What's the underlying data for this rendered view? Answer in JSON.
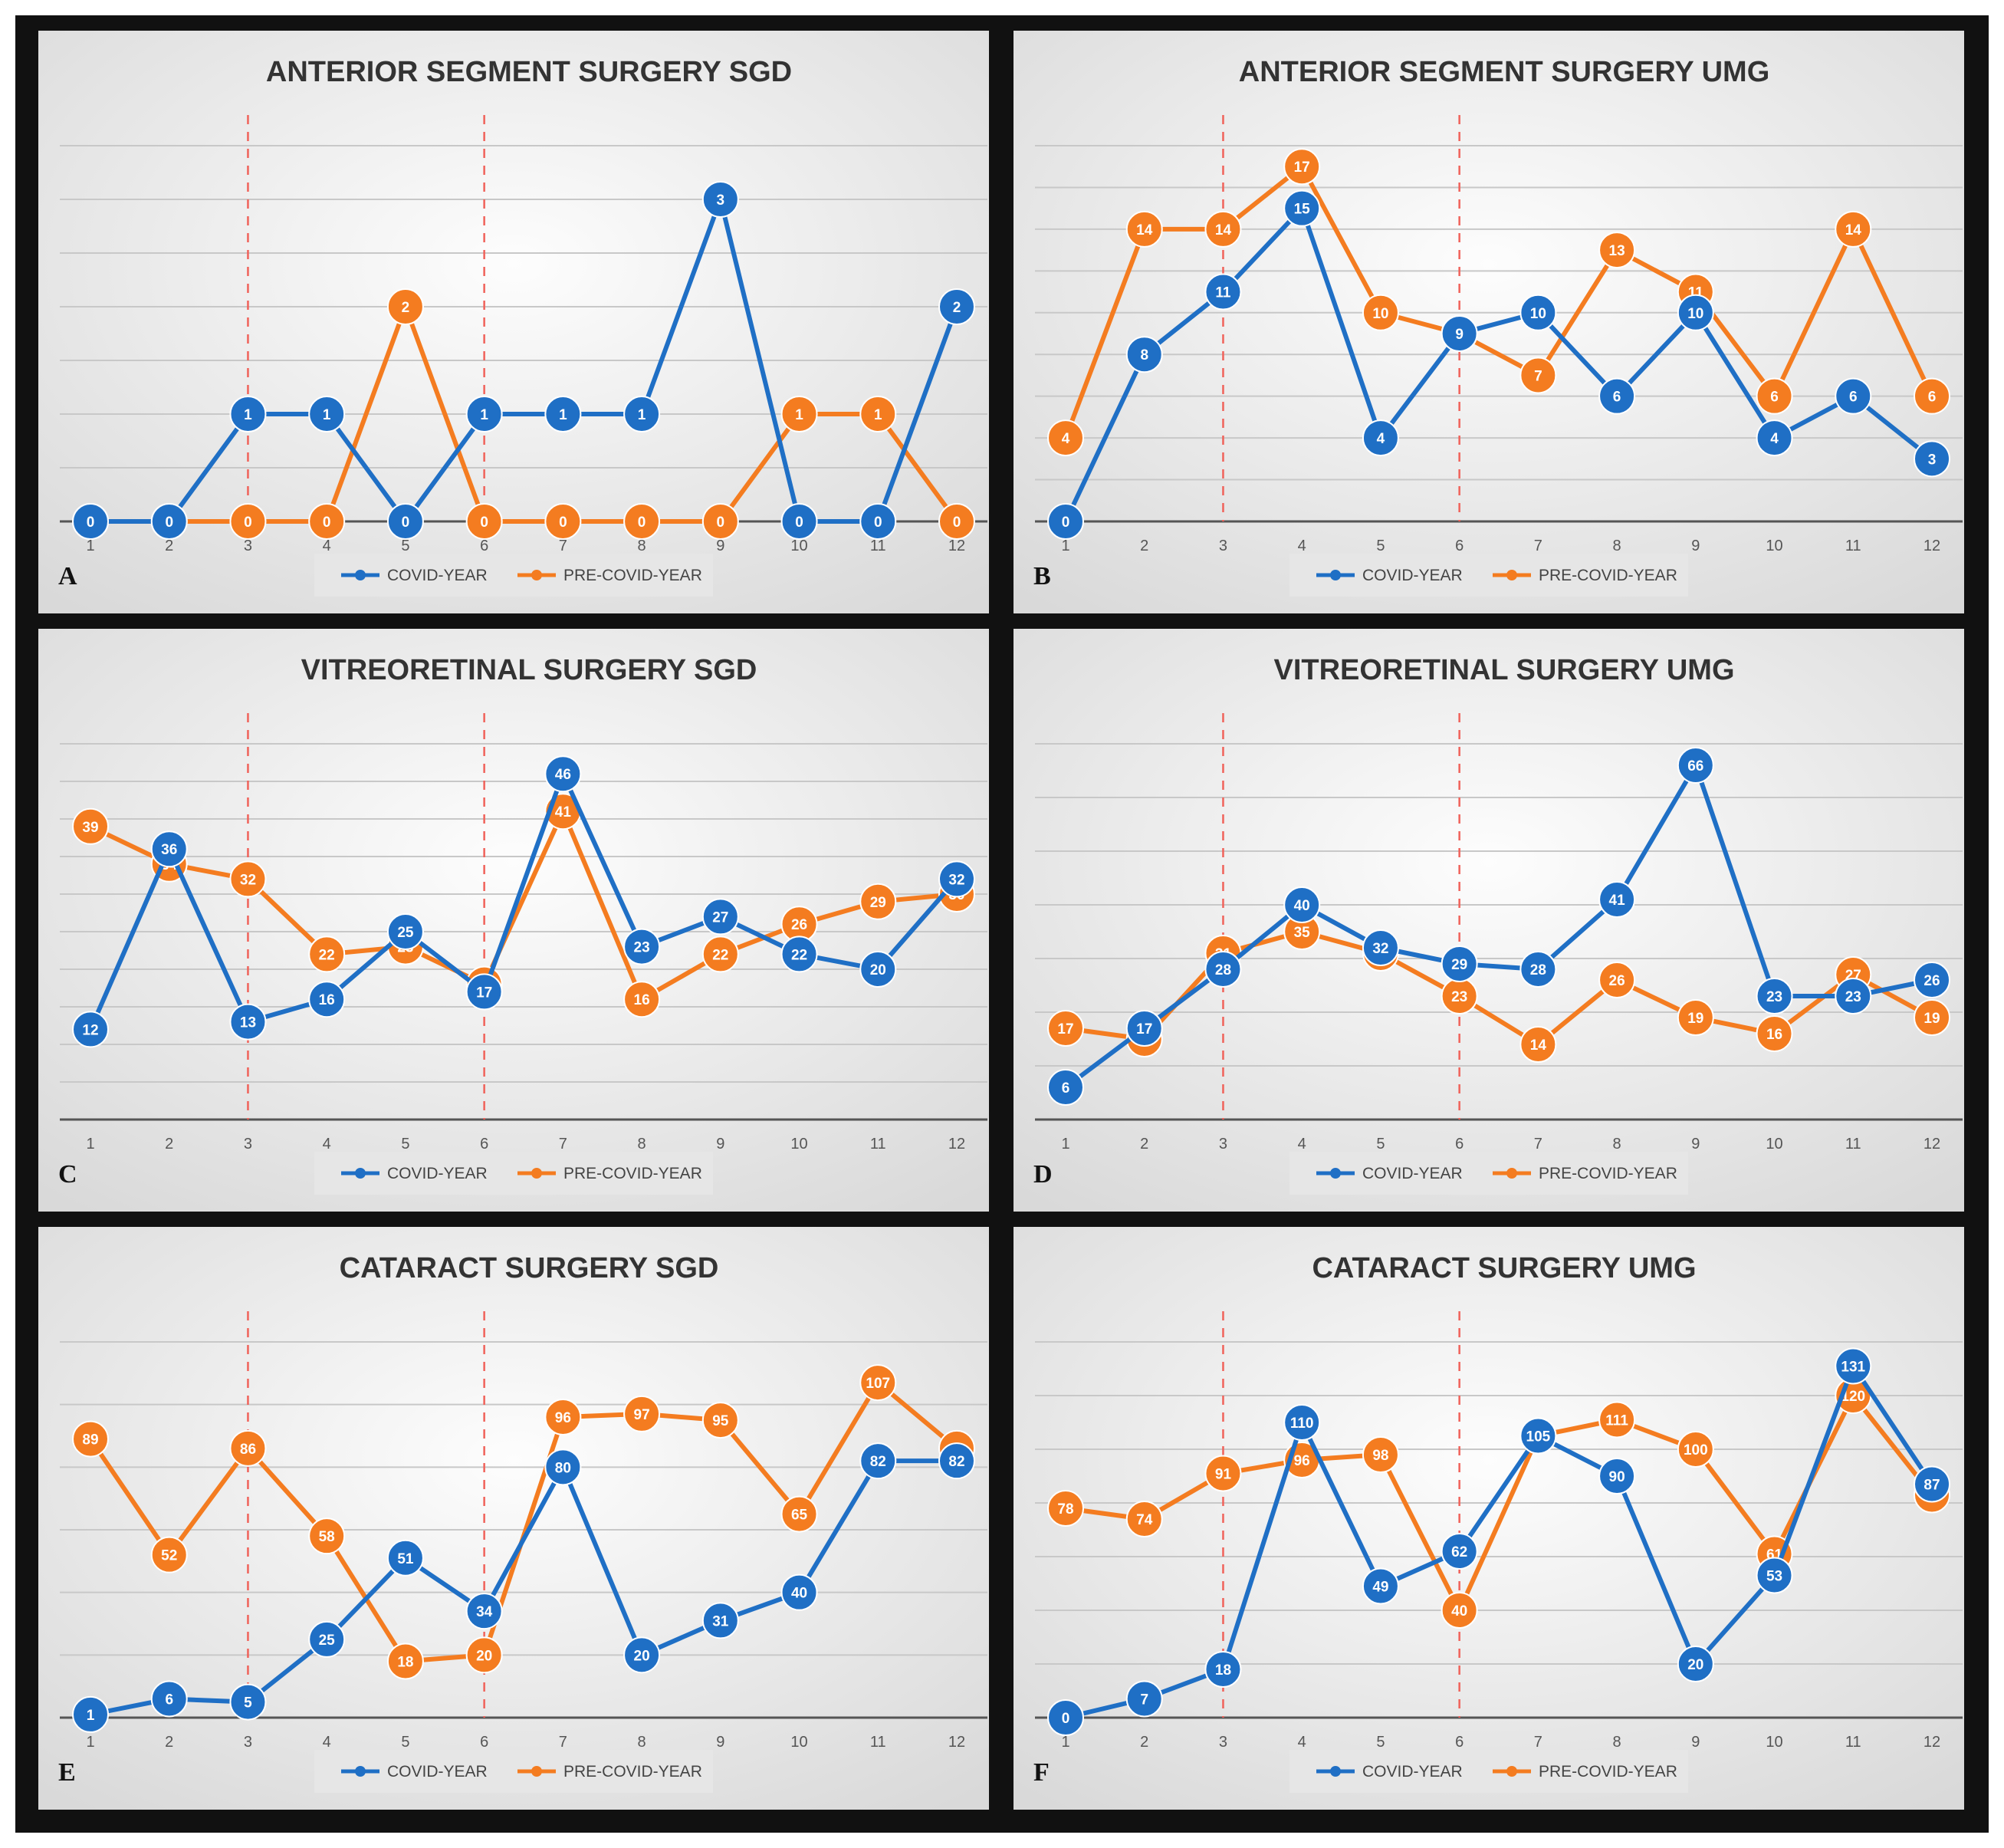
{
  "colors": {
    "covid": "#1f6fc5",
    "pre_covid": "#f47c20",
    "marker_line": "#f0625a"
  },
  "chart_data": [
    {
      "type": "line",
      "panel_letter": "A",
      "title": "ANTERIOR SEGMENT SURGERY SGD",
      "categories": [
        "1",
        "2",
        "3",
        "4",
        "5",
        "6",
        "7",
        "8",
        "9",
        "10",
        "11",
        "12"
      ],
      "series": [
        {
          "name": "COVID-YEAR",
          "values": [
            0,
            0,
            1,
            1,
            0,
            1,
            1,
            1,
            3,
            0,
            0,
            2
          ]
        },
        {
          "name": "PRE-COVID-YEAR",
          "values": [
            0,
            0,
            0,
            0,
            2,
            0,
            0,
            0,
            0,
            1,
            1,
            0
          ]
        }
      ],
      "ylim": [
        0,
        3.5
      ],
      "gridlines": 7,
      "vlines_at": [
        3,
        6
      ],
      "legend": "bottom"
    },
    {
      "type": "line",
      "panel_letter": "B",
      "title": "ANTERIOR SEGMENT SURGERY UMG",
      "categories": [
        "1",
        "2",
        "3",
        "4",
        "5",
        "6",
        "7",
        "8",
        "9",
        "10",
        "11",
        "12"
      ],
      "series": [
        {
          "name": "COVID-YEAR",
          "values": [
            0,
            8,
            11,
            15,
            4,
            9,
            10,
            6,
            10,
            4,
            6,
            3
          ]
        },
        {
          "name": "PRE-COVID-YEAR",
          "values": [
            4,
            14,
            14,
            17,
            10,
            9,
            7,
            13,
            11,
            6,
            14,
            6
          ]
        }
      ],
      "ylim": [
        0,
        18
      ],
      "gridlines": 9,
      "vlines_at": [
        3,
        6
      ],
      "legend": "bottom"
    },
    {
      "type": "line",
      "panel_letter": "C",
      "title": "VITREORETINAL SURGERY SGD",
      "categories": [
        "1",
        "2",
        "3",
        "4",
        "5",
        "6",
        "7",
        "8",
        "9",
        "10",
        "11",
        "12"
      ],
      "series": [
        {
          "name": "COVID-YEAR",
          "values": [
            12,
            36,
            13,
            16,
            25,
            17,
            46,
            23,
            27,
            22,
            20,
            32
          ]
        },
        {
          "name": "PRE-COVID-YEAR",
          "values": [
            39,
            34,
            32,
            22,
            23,
            18,
            41,
            16,
            22,
            26,
            29,
            30
          ]
        }
      ],
      "ylim": [
        0,
        50
      ],
      "gridlines": 10,
      "vlines_at": [
        3,
        6
      ],
      "legend": "bottom"
    },
    {
      "type": "line",
      "panel_letter": "D",
      "title": "VITREORETINAL SURGERY UMG",
      "categories": [
        "1",
        "2",
        "3",
        "4",
        "5",
        "6",
        "7",
        "8",
        "9",
        "10",
        "11",
        "12"
      ],
      "series": [
        {
          "name": "COVID-YEAR",
          "values": [
            6,
            17,
            28,
            40,
            32,
            29,
            28,
            41,
            66,
            23,
            23,
            26
          ]
        },
        {
          "name": "PRE-COVID-YEAR",
          "values": [
            17,
            15,
            31,
            35,
            31,
            23,
            14,
            26,
            19,
            16,
            27,
            19
          ]
        }
      ],
      "ylim": [
        0,
        70
      ],
      "gridlines": 7,
      "vlines_at": [
        3,
        6
      ],
      "legend": "bottom"
    },
    {
      "type": "line",
      "panel_letter": "E",
      "title": "CATARACT SURGERY SGD",
      "categories": [
        "1",
        "2",
        "3",
        "4",
        "5",
        "6",
        "7",
        "8",
        "9",
        "10",
        "11",
        "12"
      ],
      "series": [
        {
          "name": "COVID-YEAR",
          "values": [
            1,
            6,
            5,
            25,
            51,
            34,
            80,
            20,
            31,
            40,
            82,
            82
          ]
        },
        {
          "name": "PRE-COVID-YEAR",
          "values": [
            89,
            52,
            86,
            58,
            18,
            20,
            96,
            97,
            95,
            65,
            107,
            86
          ]
        }
      ],
      "ylim": [
        0,
        120
      ],
      "gridlines": 6,
      "vlines_at": [
        3,
        6
      ],
      "legend": "bottom"
    },
    {
      "type": "line",
      "panel_letter": "F",
      "title": "CATARACT SURGERY UMG",
      "categories": [
        "1",
        "2",
        "3",
        "4",
        "5",
        "6",
        "7",
        "8",
        "9",
        "10",
        "11",
        "12"
      ],
      "series": [
        {
          "name": "COVID-YEAR",
          "values": [
            0,
            7,
            18,
            110,
            49,
            62,
            105,
            90,
            20,
            53,
            131,
            87
          ]
        },
        {
          "name": "PRE-COVID-YEAR",
          "values": [
            78,
            74,
            91,
            96,
            98,
            40,
            105,
            111,
            100,
            61,
            120,
            83
          ]
        }
      ],
      "ylim": [
        0,
        140
      ],
      "gridlines": 7,
      "vlines_at": [
        3,
        6
      ],
      "legend": "bottom"
    }
  ]
}
